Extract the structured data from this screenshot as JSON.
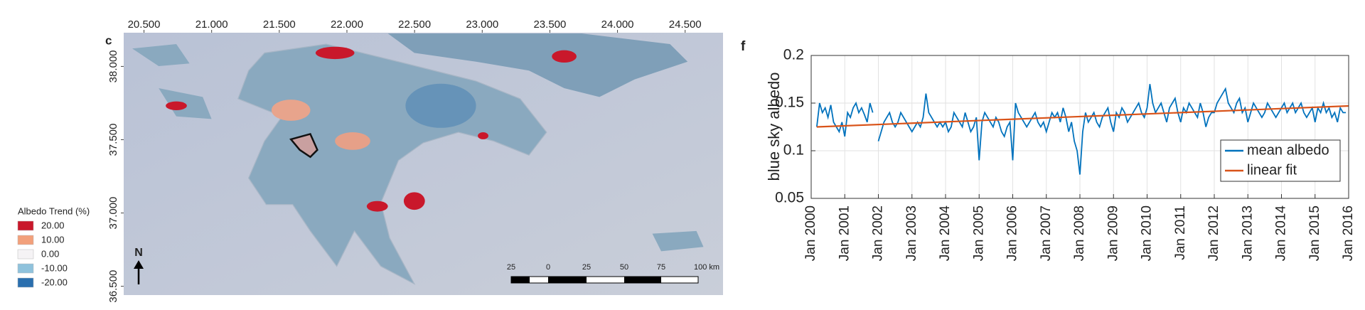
{
  "map": {
    "panel": "c",
    "lonlim": [
      20.35,
      24.78
    ],
    "latlim": [
      36.44,
      38.23
    ],
    "lon_ticks": [
      {
        "value": 20.5,
        "label": "20.500"
      },
      {
        "value": 21,
        "label": "21.000"
      },
      {
        "value": 21.5,
        "label": "21.500"
      },
      {
        "value": 22,
        "label": "22.000"
      },
      {
        "value": 22.5,
        "label": "22.500"
      },
      {
        "value": 23,
        "label": "23.000"
      },
      {
        "value": 23.5,
        "label": "23.500"
      },
      {
        "value": 24,
        "label": "24.000"
      },
      {
        "value": 24.5,
        "label": "24.500"
      }
    ],
    "lat_ticks": [
      {
        "value": 36.5,
        "label": "36.500"
      },
      {
        "value": 37,
        "label": "37.000"
      },
      {
        "value": 37.5,
        "label": "37.500"
      },
      {
        "value": 38,
        "label": "38.000"
      }
    ],
    "legend": {
      "title": "Albedo Trend (%)",
      "items": [
        {
          "label": "20.00",
          "color": "#c9182b"
        },
        {
          "label": "10.00",
          "color": "#f2a07b"
        },
        {
          "label": "0.00",
          "color": "#f5f3f5"
        },
        {
          "label": "-10.00",
          "color": "#8fc2dc"
        },
        {
          "label": "-20.00",
          "color": "#2a6fae"
        }
      ]
    },
    "north": "N",
    "scale_labels": [
      "25",
      "0",
      "25",
      "50",
      "75",
      "100 km"
    ]
  },
  "chart_data": {
    "type": "line",
    "panel": "f",
    "ylabel": "blue sky albedo",
    "xlim": [
      "2000-01",
      "2016-01"
    ],
    "ylim": [
      0.05,
      0.2
    ],
    "yticks": [
      0.05,
      0.1,
      0.15,
      0.2
    ],
    "grid": true,
    "legend": "lower right",
    "xticks": [
      {
        "value": "2000-01",
        "label": "Jan 2000"
      },
      {
        "value": "2001-01",
        "label": "Jan 2001"
      },
      {
        "value": "2002-01",
        "label": "Jan 2002"
      },
      {
        "value": "2003-01",
        "label": "Jan 2003"
      },
      {
        "value": "2004-01",
        "label": "Jan 2004"
      },
      {
        "value": "2005-01",
        "label": "Jan 2005"
      },
      {
        "value": "2006-01",
        "label": "Jan 2006"
      },
      {
        "value": "2007-01",
        "label": "Jan 2007"
      },
      {
        "value": "2008-01",
        "label": "Jan 2008"
      },
      {
        "value": "2009-01",
        "label": "Jan 2009"
      },
      {
        "value": "2010-01",
        "label": "Jan 2010"
      },
      {
        "value": "2011-01",
        "label": "Jan 2011"
      },
      {
        "value": "2012-01",
        "label": "Jan 2012"
      },
      {
        "value": "2013-01",
        "label": "Jan 2013"
      },
      {
        "value": "2014-01",
        "label": "Jan 2014"
      },
      {
        "value": "2015-01",
        "label": "Jan 2015"
      },
      {
        "value": "2016-01",
        "label": "Jan 2016"
      }
    ],
    "series": [
      {
        "name": "mean albedo",
        "color": "#0072bd",
        "x": [
          "2000-03",
          "2000-04",
          "2000-05",
          "2000-06",
          "2000-07",
          "2000-08",
          "2000-09",
          "2000-10",
          "2000-11",
          "2000-12",
          "2001-01",
          "2001-02",
          "2001-03",
          "2001-04",
          "2001-05",
          "2001-06",
          "2001-07",
          "2001-08",
          "2001-09",
          "2001-10",
          "2001-11",
          "2001-12",
          "2002-01",
          "2002-02",
          "2002-03",
          "2002-04",
          "2002-05",
          "2002-06",
          "2002-07",
          "2002-08",
          "2002-09",
          "2002-10",
          "2002-11",
          "2002-12",
          "2003-01",
          "2003-02",
          "2003-03",
          "2003-04",
          "2003-05",
          "2003-06",
          "2003-07",
          "2003-08",
          "2003-09",
          "2003-10",
          "2003-11",
          "2003-12",
          "2004-01",
          "2004-02",
          "2004-03",
          "2004-04",
          "2004-05",
          "2004-06",
          "2004-07",
          "2004-08",
          "2004-09",
          "2004-10",
          "2004-11",
          "2004-12",
          "2005-01",
          "2005-02",
          "2005-03",
          "2005-04",
          "2005-05",
          "2005-06",
          "2005-07",
          "2005-08",
          "2005-09",
          "2005-10",
          "2005-11",
          "2005-12",
          "2006-01",
          "2006-02",
          "2006-03",
          "2006-04",
          "2006-05",
          "2006-06",
          "2006-07",
          "2006-08",
          "2006-09",
          "2006-10",
          "2006-11",
          "2006-12",
          "2007-01",
          "2007-02",
          "2007-03",
          "2007-04",
          "2007-05",
          "2007-06",
          "2007-07",
          "2007-08",
          "2007-09",
          "2007-10",
          "2007-11",
          "2007-12",
          "2008-01",
          "2008-02",
          "2008-03",
          "2008-04",
          "2008-05",
          "2008-06",
          "2008-07",
          "2008-08",
          "2008-09",
          "2008-10",
          "2008-11",
          "2008-12",
          "2009-01",
          "2009-02",
          "2009-03",
          "2009-04",
          "2009-05",
          "2009-06",
          "2009-07",
          "2009-08",
          "2009-09",
          "2009-10",
          "2009-11",
          "2009-12",
          "2010-01",
          "2010-02",
          "2010-03",
          "2010-04",
          "2010-05",
          "2010-06",
          "2010-07",
          "2010-08",
          "2010-09",
          "2010-10",
          "2010-11",
          "2010-12",
          "2011-01",
          "2011-02",
          "2011-03",
          "2011-04",
          "2011-05",
          "2011-06",
          "2011-07",
          "2011-08",
          "2011-09",
          "2011-10",
          "2011-11",
          "2011-12",
          "2012-01",
          "2012-02",
          "2012-03",
          "2012-04",
          "2012-05",
          "2012-06",
          "2012-07",
          "2012-08",
          "2012-09",
          "2012-10",
          "2012-11",
          "2012-12",
          "2013-01",
          "2013-02",
          "2013-03",
          "2013-04",
          "2013-05",
          "2013-06",
          "2013-07",
          "2013-08",
          "2013-09",
          "2013-10",
          "2013-11",
          "2013-12",
          "2014-01",
          "2014-02",
          "2014-03",
          "2014-04",
          "2014-05",
          "2014-06",
          "2014-07",
          "2014-08",
          "2014-09",
          "2014-10",
          "2014-11",
          "2014-12",
          "2015-01",
          "2015-02",
          "2015-03",
          "2015-04",
          "2015-05",
          "2015-06",
          "2015-07",
          "2015-08",
          "2015-09",
          "2015-10",
          "2015-11",
          "2015-12"
        ],
        "values": [
          0.125,
          0.15,
          0.14,
          0.145,
          0.135,
          0.148,
          0.13,
          0.125,
          0.12,
          0.13,
          0.115,
          0.14,
          0.135,
          0.145,
          0.15,
          0.14,
          0.145,
          0.138,
          0.13,
          0.15,
          0.14,
          null,
          0.11,
          0.12,
          0.13,
          0.135,
          0.14,
          0.13,
          0.125,
          0.13,
          0.14,
          0.135,
          0.13,
          0.125,
          0.12,
          0.125,
          0.13,
          0.125,
          0.135,
          0.16,
          0.14,
          0.135,
          0.13,
          0.125,
          0.13,
          0.125,
          0.13,
          0.12,
          0.125,
          0.14,
          0.135,
          0.13,
          0.125,
          0.14,
          0.13,
          0.12,
          0.125,
          0.135,
          0.09,
          0.13,
          0.14,
          0.135,
          0.13,
          0.125,
          0.135,
          0.13,
          0.12,
          0.115,
          0.125,
          0.13,
          0.09,
          0.15,
          0.14,
          0.135,
          0.13,
          0.125,
          0.13,
          0.135,
          0.14,
          0.13,
          0.125,
          0.13,
          0.12,
          0.13,
          0.14,
          0.135,
          0.14,
          0.13,
          0.145,
          0.135,
          0.12,
          0.13,
          0.11,
          0.1,
          0.075,
          0.12,
          0.14,
          0.13,
          0.135,
          0.14,
          0.13,
          0.125,
          0.135,
          0.14,
          0.145,
          0.13,
          0.12,
          0.14,
          0.135,
          0.145,
          0.14,
          0.13,
          0.135,
          0.14,
          0.145,
          0.15,
          0.14,
          0.135,
          0.145,
          0.17,
          0.15,
          0.14,
          0.145,
          0.15,
          0.14,
          0.13,
          0.145,
          0.15,
          0.155,
          0.14,
          0.13,
          0.145,
          0.14,
          0.15,
          0.145,
          0.14,
          0.135,
          0.15,
          0.14,
          0.125,
          0.135,
          0.14,
          0.14,
          0.15,
          0.155,
          0.16,
          0.165,
          0.15,
          0.145,
          0.14,
          0.15,
          0.155,
          0.14,
          0.145,
          0.13,
          0.14,
          0.15,
          0.145,
          0.14,
          0.135,
          0.14,
          0.15,
          0.145,
          0.14,
          0.135,
          0.14,
          0.145,
          0.15,
          0.14,
          0.145,
          0.15,
          0.14,
          0.145,
          0.15,
          0.14,
          0.135,
          0.14,
          0.145,
          0.13,
          0.145,
          0.14,
          0.15,
          0.14,
          0.145,
          0.135,
          0.14,
          0.13,
          0.145,
          0.14,
          0.14
        ]
      },
      {
        "name": "linear fit",
        "color": "#d95319",
        "x": [
          "2000-03",
          "2016-01"
        ],
        "values": [
          0.125,
          0.147
        ]
      }
    ]
  }
}
